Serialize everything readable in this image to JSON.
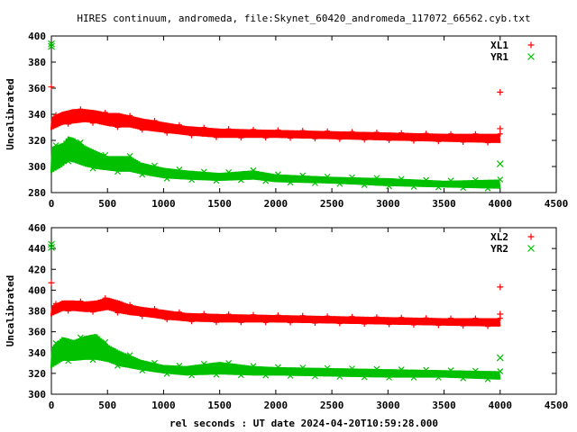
{
  "title": "HIRES continuum, andromeda, file:Skynet_60420_andromeda_117072_66562.cyb.txt",
  "xlabel": "rel seconds : UT date 2024-04-20T10:59:28.000",
  "colors": {
    "red": "#ff0000",
    "green": "#00c000"
  },
  "chart_data": [
    {
      "type": "scatter",
      "ylabel": "Uncalibrated",
      "xlim": [
        0,
        4500
      ],
      "ylim": [
        280,
        400
      ],
      "xticks": [
        0,
        500,
        1000,
        1500,
        2000,
        2500,
        3000,
        3500,
        4000,
        4500
      ],
      "yticks": [
        280,
        300,
        320,
        340,
        360,
        380,
        400
      ],
      "legend_position": "top-right",
      "series": [
        {
          "name": "XL1",
          "color": "#ff0000",
          "marker": "plus",
          "band": [
            [
              0,
              328,
              338
            ],
            [
              100,
              332,
              342
            ],
            [
              200,
              333,
              344
            ],
            [
              300,
              334,
              344
            ],
            [
              400,
              333,
              343
            ],
            [
              500,
              331,
              341
            ],
            [
              600,
              330,
              341
            ],
            [
              700,
              330,
              339
            ],
            [
              800,
              328,
              337
            ],
            [
              1000,
              326,
              334
            ],
            [
              1200,
              324,
              331
            ],
            [
              1500,
              322,
              329
            ],
            [
              2000,
              322,
              328
            ],
            [
              2500,
              321,
              327
            ],
            [
              3000,
              320,
              326
            ],
            [
              3500,
              319,
              325
            ],
            [
              4000,
              318,
              325
            ]
          ],
          "outliers": [
            [
              0,
              361
            ],
            [
              4000,
              357
            ],
            [
              4000,
              329
            ]
          ]
        },
        {
          "name": "YR1",
          "color": "#00c000",
          "marker": "cross",
          "band": [
            [
              0,
              295,
              315
            ],
            [
              100,
              300,
              318
            ],
            [
              150,
              304,
              323
            ],
            [
              200,
              303,
              322
            ],
            [
              300,
              300,
              316
            ],
            [
              400,
              298,
              312
            ],
            [
              500,
              297,
              308
            ],
            [
              600,
              296,
              308
            ],
            [
              700,
              296,
              308
            ],
            [
              800,
              294,
              303
            ],
            [
              1000,
              291,
              299
            ],
            [
              1200,
              290,
              297
            ],
            [
              1500,
              289,
              295
            ],
            [
              1800,
              290,
              297
            ],
            [
              2000,
              288,
              294
            ],
            [
              2500,
              287,
              292
            ],
            [
              3000,
              285,
              291
            ],
            [
              3500,
              284,
              289
            ],
            [
              4000,
              283,
              290
            ]
          ],
          "outliers": [
            [
              0,
              394
            ],
            [
              0,
              392
            ],
            [
              4000,
              302
            ]
          ]
        }
      ]
    },
    {
      "type": "scatter",
      "ylabel": "Uncalibrated",
      "xlim": [
        0,
        4500
      ],
      "ylim": [
        300,
        460
      ],
      "xticks": [
        0,
        500,
        1000,
        1500,
        2000,
        2500,
        3000,
        3500,
        4000,
        4500
      ],
      "yticks": [
        300,
        320,
        340,
        360,
        380,
        400,
        420,
        440,
        460
      ],
      "legend_position": "top-right",
      "series": [
        {
          "name": "XL2",
          "color": "#ff0000",
          "marker": "plus",
          "band": [
            [
              0,
              375,
              385
            ],
            [
              100,
              380,
              390
            ],
            [
              200,
              380,
              390
            ],
            [
              300,
              379,
              389
            ],
            [
              400,
              379,
              390
            ],
            [
              500,
              381,
              393
            ],
            [
              600,
              378,
              390
            ],
            [
              700,
              376,
              386
            ],
            [
              800,
              375,
              384
            ],
            [
              1000,
              372,
              381
            ],
            [
              1200,
              370,
              378
            ],
            [
              1500,
              369,
              377
            ],
            [
              2000,
              369,
              376
            ],
            [
              2500,
              368,
              375
            ],
            [
              3000,
              367,
              374
            ],
            [
              3500,
              366,
              373
            ],
            [
              4000,
              365,
              373
            ]
          ],
          "outliers": [
            [
              0,
              407
            ],
            [
              4000,
              403
            ],
            [
              4000,
              377
            ]
          ]
        },
        {
          "name": "YR2",
          "color": "#00c000",
          "marker": "cross",
          "band": [
            [
              0,
              325,
              345
            ],
            [
              100,
              332,
              355
            ],
            [
              200,
              332,
              352
            ],
            [
              300,
              333,
              356
            ],
            [
              400,
              333,
              358
            ],
            [
              500,
              331,
              348
            ],
            [
              600,
              327,
              342
            ],
            [
              800,
              323,
              333
            ],
            [
              1000,
              320,
              328
            ],
            [
              1200,
              318,
              327
            ],
            [
              1500,
              319,
              331
            ],
            [
              1800,
              318,
              327
            ],
            [
              2000,
              318,
              326
            ],
            [
              2500,
              317,
              325
            ],
            [
              3000,
              316,
              324
            ],
            [
              3500,
              316,
              323
            ],
            [
              4000,
              314,
              322
            ]
          ],
          "outliers": [
            [
              0,
              444
            ],
            [
              0,
              441
            ],
            [
              4000,
              335
            ]
          ]
        }
      ]
    }
  ]
}
